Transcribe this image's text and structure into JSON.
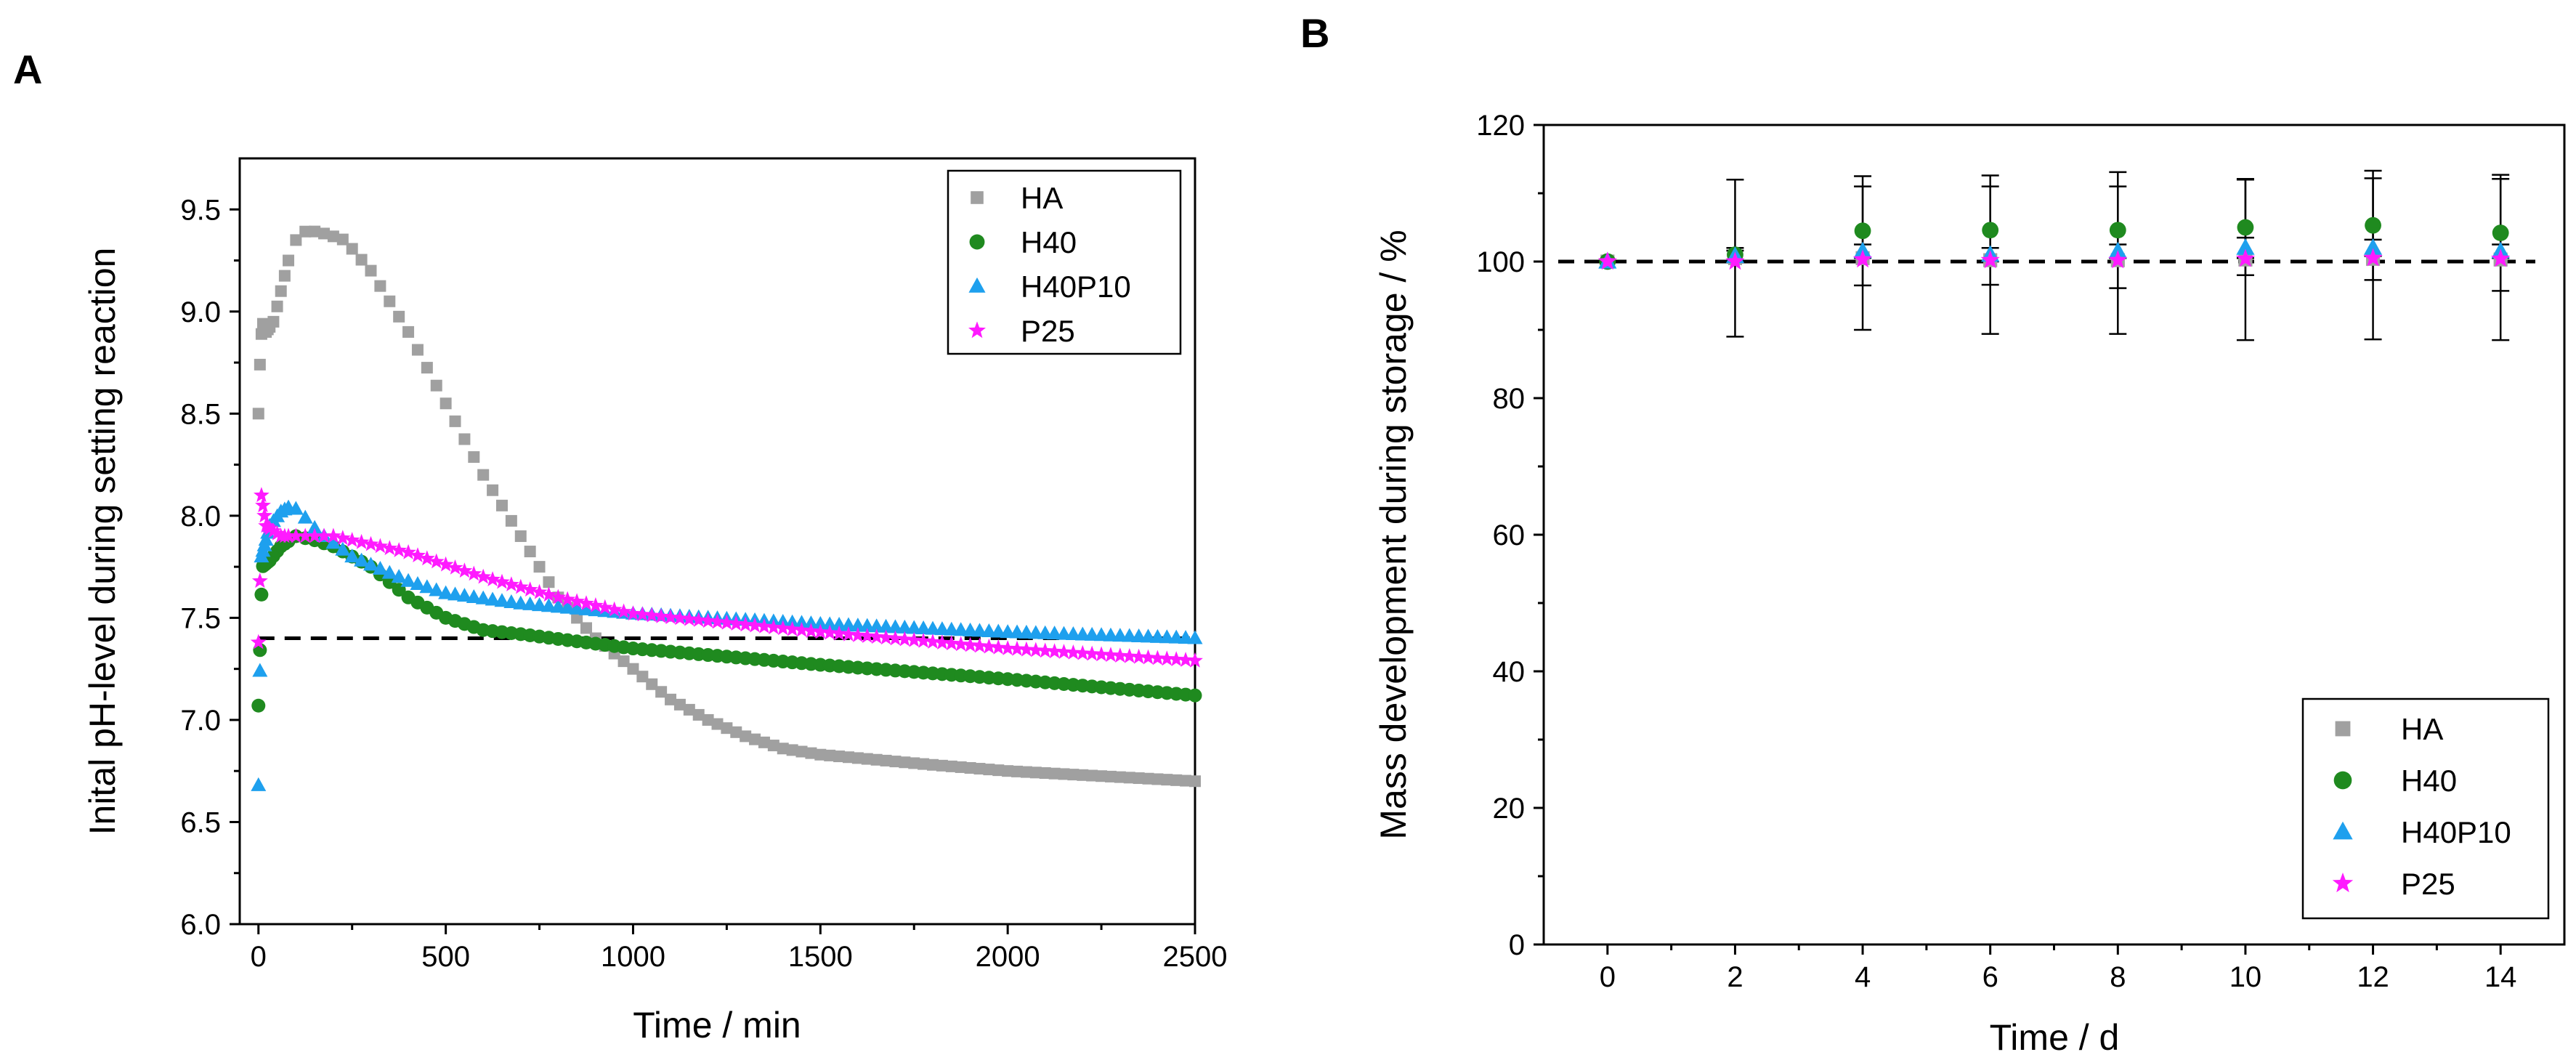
{
  "chart_data": [
    {
      "panel_label": "A",
      "type": "scatter",
      "xlabel": "Time / min",
      "ylabel": "Inital pH-level during setting reaction",
      "xlim": [
        -50,
        2500
      ],
      "ylim": [
        6.0,
        9.75
      ],
      "xticks": [
        0,
        500,
        1000,
        1500,
        2000,
        2500
      ],
      "yticks": [
        6.0,
        6.5,
        7.0,
        7.5,
        8.0,
        8.5,
        9.0,
        9.5
      ],
      "grid": false,
      "legend_position": "top-right",
      "reference_line": {
        "y": 7.4,
        "style": "dashed"
      },
      "series": [
        {
          "name": "HA",
          "color": "#a0a0a0",
          "marker": "square",
          "anchors": [
            [
              0,
              8.5
            ],
            [
              5,
              8.8
            ],
            [
              10,
              8.95
            ],
            [
              20,
              8.9
            ],
            [
              40,
              8.95
            ],
            [
              60,
              9.1
            ],
            [
              80,
              9.25
            ],
            [
              100,
              9.35
            ],
            [
              130,
              9.4
            ],
            [
              180,
              9.38
            ],
            [
              230,
              9.35
            ],
            [
              300,
              9.2
            ],
            [
              400,
              8.9
            ],
            [
              500,
              8.55
            ],
            [
              600,
              8.2
            ],
            [
              700,
              7.9
            ],
            [
              800,
              7.6
            ],
            [
              900,
              7.4
            ],
            [
              1000,
              7.25
            ],
            [
              1100,
              7.1
            ],
            [
              1200,
              7.0
            ],
            [
              1300,
              6.92
            ],
            [
              1400,
              6.86
            ],
            [
              1500,
              6.83
            ],
            [
              1800,
              6.78
            ],
            [
              2000,
              6.75
            ],
            [
              2500,
              6.7
            ]
          ]
        },
        {
          "name": "H40",
          "color": "#1f8a1f",
          "marker": "circle",
          "anchors": [
            [
              0,
              7.07
            ],
            [
              10,
              7.75
            ],
            [
              30,
              7.78
            ],
            [
              60,
              7.85
            ],
            [
              100,
              7.9
            ],
            [
              150,
              7.88
            ],
            [
              200,
              7.85
            ],
            [
              300,
              7.75
            ],
            [
              400,
              7.6
            ],
            [
              500,
              7.5
            ],
            [
              600,
              7.44
            ],
            [
              700,
              7.42
            ],
            [
              1000,
              7.35
            ],
            [
              1500,
              7.27
            ],
            [
              2000,
              7.2
            ],
            [
              2500,
              7.12
            ]
          ]
        },
        {
          "name": "H40P10",
          "color": "#1ea0ee",
          "marker": "triangle",
          "anchors": [
            [
              0,
              6.68
            ],
            [
              8,
              7.8
            ],
            [
              30,
              7.95
            ],
            [
              60,
              8.02
            ],
            [
              90,
              8.05
            ],
            [
              120,
              8.0
            ],
            [
              160,
              7.92
            ],
            [
              250,
              7.8
            ],
            [
              400,
              7.68
            ],
            [
              500,
              7.62
            ],
            [
              700,
              7.57
            ],
            [
              1000,
              7.52
            ],
            [
              1500,
              7.47
            ],
            [
              2000,
              7.43
            ],
            [
              2500,
              7.4
            ]
          ]
        },
        {
          "name": "P25",
          "color": "#ff1aff",
          "marker": "star",
          "anchors": [
            [
              0,
              7.38
            ],
            [
              4,
              7.68
            ],
            [
              8,
              8.1
            ],
            [
              20,
              7.95
            ],
            [
              60,
              7.9
            ],
            [
              200,
              7.9
            ],
            [
              400,
              7.82
            ],
            [
              600,
              7.7
            ],
            [
              800,
              7.6
            ],
            [
              1000,
              7.52
            ],
            [
              1500,
              7.43
            ],
            [
              2000,
              7.35
            ],
            [
              2500,
              7.29
            ]
          ]
        }
      ]
    },
    {
      "panel_label": "B",
      "type": "scatter",
      "xlabel": "Time / d",
      "ylabel": "Mass development during storage / %",
      "xlim": [
        -1,
        15
      ],
      "ylim": [
        0,
        120
      ],
      "xticks": [
        0,
        2,
        4,
        6,
        8,
        10,
        12,
        14
      ],
      "yticks": [
        0,
        20,
        40,
        60,
        80,
        100,
        120
      ],
      "grid": false,
      "legend_position": "bottom-right",
      "reference_line": {
        "y": 100,
        "style": "dashed"
      },
      "x": [
        0,
        2,
        4,
        6,
        8,
        10,
        12,
        14
      ],
      "series": [
        {
          "name": "HA",
          "color": "#a0a0a0",
          "marker": "square",
          "values": [
            100,
            100.5,
            100.5,
            100.2,
            100.2,
            100.3,
            100.4,
            100.3
          ],
          "errors": [
            0.5,
            11.5,
            10.5,
            10.8,
            10.8,
            11.8,
            11.8,
            11.8
          ]
        },
        {
          "name": "H40",
          "color": "#1f8a1f",
          "marker": "circle",
          "values": [
            100,
            101,
            104.5,
            104.6,
            104.6,
            105,
            105.3,
            104.2
          ],
          "errors": [
            0.5,
            1,
            8,
            8,
            8.5,
            7,
            8,
            8.5
          ]
        },
        {
          "name": "H40P10",
          "color": "#1ea0ee",
          "marker": "triangle",
          "values": [
            100,
            100.8,
            101.5,
            101,
            101.5,
            102,
            102,
            101.5
          ],
          "errors": [
            0.5,
            0.8,
            1,
            1,
            1,
            1.5,
            1.2,
            1
          ]
        },
        {
          "name": "P25",
          "color": "#ff1aff",
          "marker": "star",
          "values": [
            100,
            100,
            100.3,
            100.2,
            100.2,
            100.4,
            100.5,
            100.4
          ],
          "errors": [
            0.5,
            0.5,
            0.5,
            0.5,
            0.5,
            0.5,
            0.5,
            0.5
          ]
        }
      ]
    }
  ]
}
